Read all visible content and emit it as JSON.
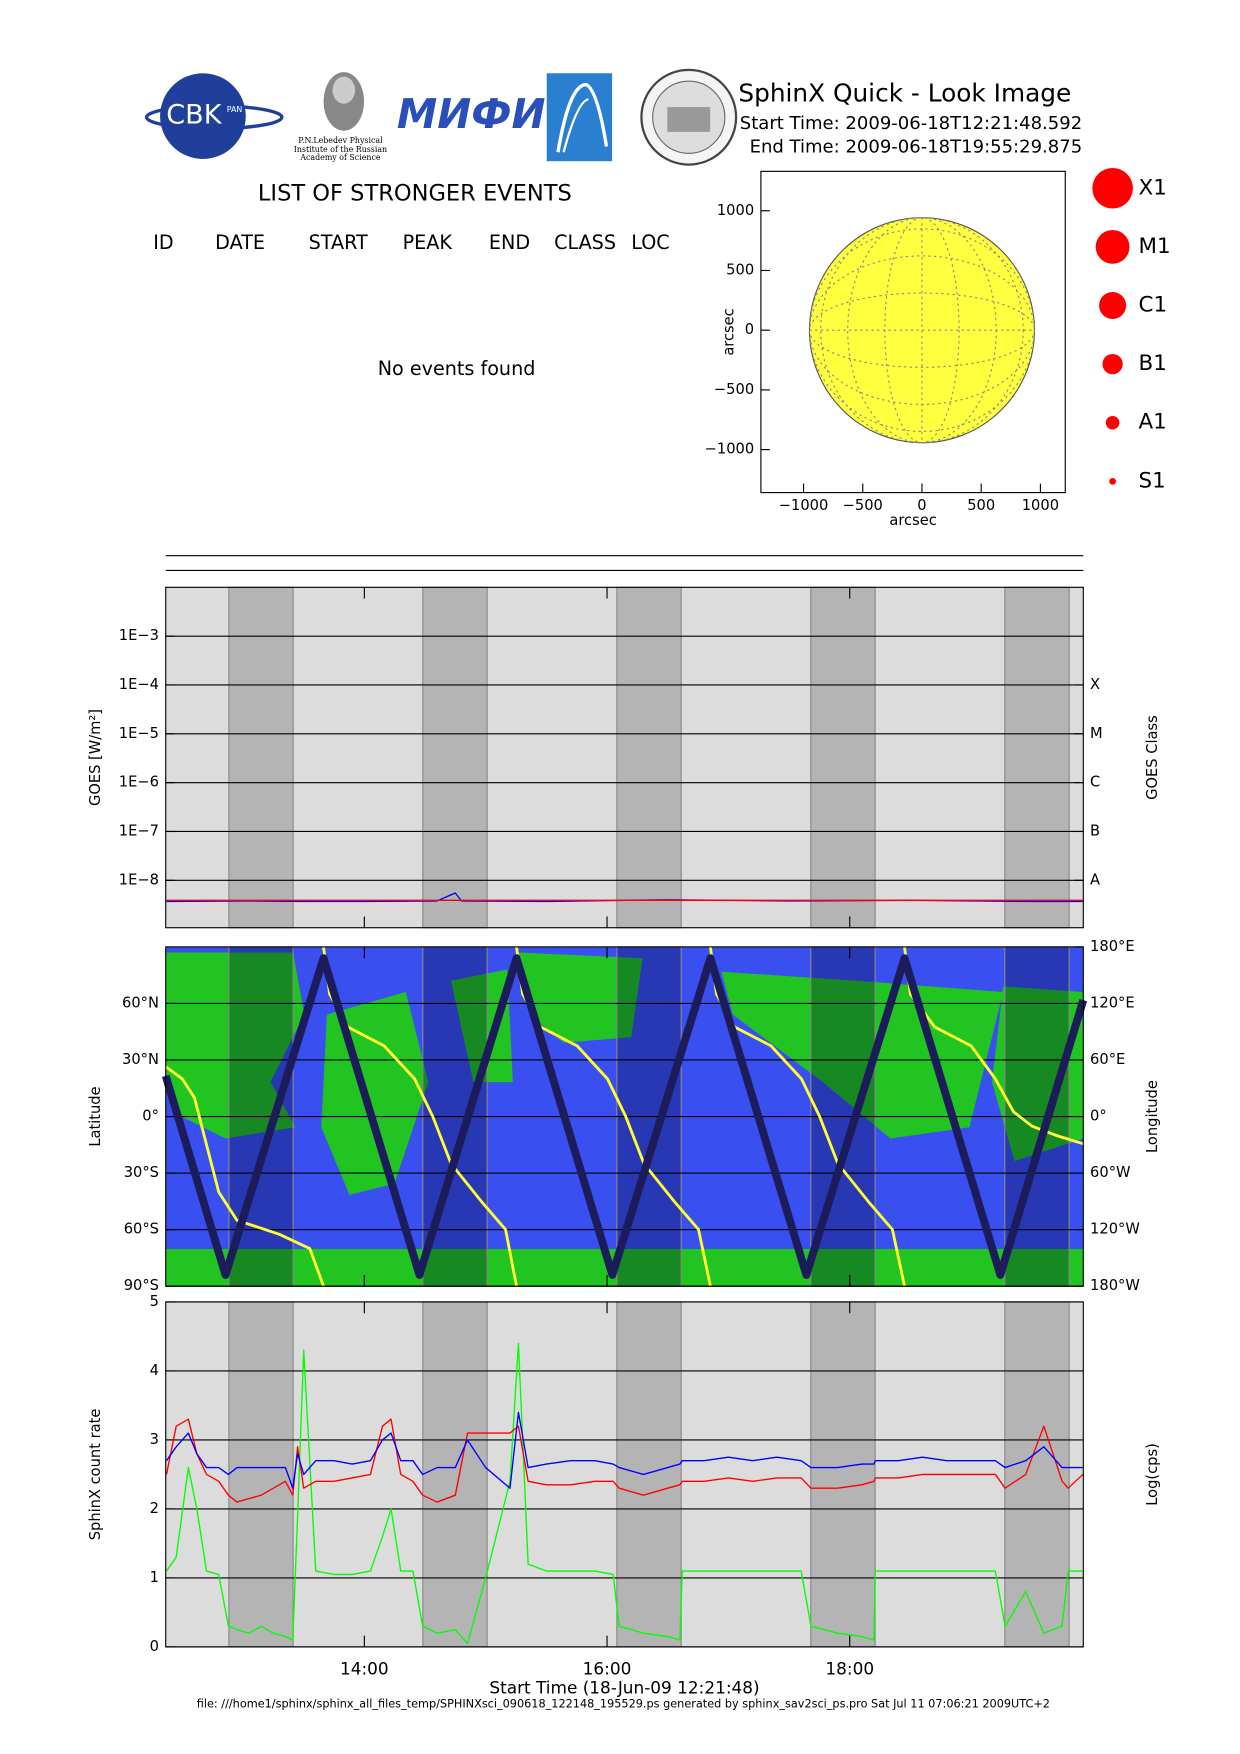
{
  "header": {
    "title": "SphinX Quick - Look Image",
    "start_time": "Start Time: 2009-06-18T12:21:48.592",
    "end_time": "End Time: 2009-06-18T19:55:29.875",
    "logos": [
      "CBK",
      "PAN",
      "P.N.Lebedev Physical",
      "Institute of the Russian",
      "Academy of Science",
      "МИФИ"
    ]
  },
  "events": {
    "title": "LIST OF STRONGER EVENTS",
    "columns": [
      "ID",
      "DATE",
      "START",
      "PEAK",
      "END",
      "CLASS",
      "LOC"
    ],
    "message": "No events found"
  },
  "flare_classes": {
    "labels": [
      "X1",
      "M1",
      "C1",
      "B1",
      "A1",
      "S1"
    ],
    "color": "#ff0000"
  },
  "time_axis": {
    "x_label": "Start Time (18-Jun-09 12:21:48)",
    "xlim": [
      12.3633,
      19.9247
    ],
    "xticks": [
      {
        "value": 14,
        "label": "14:00"
      },
      {
        "value": 16,
        "label": "16:00"
      },
      {
        "value": 18,
        "label": "18:00"
      }
    ],
    "eclipses": [
      [
        12.884,
        13.413
      ],
      [
        14.482,
        15.012
      ],
      [
        16.081,
        16.611
      ],
      [
        17.679,
        18.209
      ],
      [
        19.278,
        19.808
      ]
    ]
  },
  "chart_data": [
    {
      "type": "disk",
      "x_label": "arcsec",
      "y_label": "arcsec",
      "radius": 950,
      "color": "#ffff40",
      "xlim": [
        -1360,
        1210
      ],
      "ylim": [
        -1360,
        1330
      ],
      "xticks": [
        {
          "value": -1000,
          "label": "−1000"
        },
        {
          "value": -500,
          "label": "−500"
        },
        0,
        500,
        1000
      ],
      "yticks": [
        {
          "value": -1000,
          "label": "−1000"
        },
        {
          "value": -500,
          "label": "−500"
        },
        0,
        500,
        1000
      ]
    },
    {
      "type": "line",
      "y_label": "GOES [W/m²]",
      "y2_label": "GOES Class",
      "yscale": "log",
      "grid": true,
      "ylim": [
        1.07e-09,
        0.01
      ],
      "yticks": [
        {
          "value": 0.001,
          "label": "1E−3"
        },
        {
          "value": 0.0001,
          "label": "1E−4"
        },
        {
          "value": 1e-05,
          "label": "1E−5"
        },
        {
          "value": 1e-06,
          "label": "1E−6"
        },
        {
          "value": 1e-07,
          "label": "1E−7"
        },
        {
          "value": 1e-08,
          "label": "1E−8"
        }
      ],
      "y2lim": [
        1.07e-09,
        0.01
      ],
      "y2ticks": [
        {
          "value": 0.0001,
          "label": "X"
        },
        {
          "value": 1e-05,
          "label": "M"
        },
        {
          "value": 1e-06,
          "label": "C"
        },
        {
          "value": 1e-07,
          "label": "B"
        },
        {
          "value": 1e-08,
          "label": "A"
        }
      ],
      "x": [
        12.37,
        13.0,
        13.5,
        14.0,
        14.6,
        14.75,
        14.8,
        15.5,
        16.5,
        17.5,
        18.5,
        19.5,
        19.92
      ],
      "series": [
        {
          "color": "#0000ff",
          "values": [
            3.7e-09,
            3.8e-09,
            3.7e-09,
            3.7e-09,
            3.8e-09,
            5.5e-09,
            3.8e-09,
            3.7e-09,
            4e-09,
            3.8e-09,
            3.9e-09,
            3.7e-09,
            3.7e-09
          ]
        },
        {
          "color": "#ff0000",
          "values": [
            3.9e-09,
            3.9e-09,
            3.9e-09,
            3.9e-09,
            3.9e-09,
            3.9e-09,
            3.9e-09,
            3.9e-09,
            3.9e-09,
            3.9e-09,
            3.9e-09,
            3.9e-09,
            3.9e-09
          ]
        }
      ]
    },
    {
      "type": "ground-track",
      "y_label": "Latitude",
      "y2_label": "Longitude",
      "grid": true,
      "ylim": [
        -90,
        90
      ],
      "yticks": [
        {
          "value": -90,
          "label": "90°S"
        },
        {
          "value": -60,
          "label": "60°S"
        },
        {
          "value": -30,
          "label": "30°S"
        },
        {
          "value": 0,
          "label": "0°"
        },
        {
          "value": 30,
          "label": "30°N"
        },
        {
          "value": 60,
          "label": "60°N"
        }
      ],
      "y2lim": [
        -180,
        180
      ],
      "y2ticks": [
        {
          "value": -180,
          "label": "180°W"
        },
        {
          "value": -120,
          "label": "120°W"
        },
        {
          "value": -60,
          "label": "60°W"
        },
        {
          "value": 0,
          "label": "0°"
        },
        {
          "value": 60,
          "label": "60°E"
        },
        {
          "value": 120,
          "label": "120°E"
        },
        {
          "value": 180,
          "label": "180°E"
        }
      ],
      "series": [
        {
          "color": "#ffff33",
          "axis": "y2",
          "x": [
            12.363,
            12.5,
            12.6,
            12.7,
            12.8,
            12.95,
            13.3,
            13.55,
            13.664,
            13.664,
            13.664,
            13.714,
            13.864,
            14.164,
            14.414,
            14.564,
            14.714,
            14.964,
            15.164,
            15.254,
            15.254,
            15.254,
            15.304,
            15.454,
            15.754,
            16.004,
            16.154,
            16.304,
            16.554,
            16.754,
            16.852,
            16.852,
            16.852,
            16.902,
            17.052,
            17.352,
            17.602,
            17.752,
            17.902,
            18.152,
            18.352,
            18.451,
            18.451,
            18.451,
            18.5,
            18.7,
            19.0,
            19.2,
            19.35,
            19.5,
            19.7,
            19.925
          ],
          "values": [
            53,
            40,
            20,
            -30,
            -80,
            -110,
            -125,
            -140,
            -180,
            null,
            180,
            130,
            95,
            75,
            40,
            0,
            -50,
            -90,
            -120,
            -180,
            null,
            180,
            130,
            95,
            75,
            40,
            0,
            -50,
            -90,
            -120,
            -180,
            null,
            180,
            130,
            95,
            75,
            40,
            0,
            -50,
            -90,
            -120,
            -180,
            null,
            180,
            130,
            95,
            75,
            40,
            5,
            -10,
            -20,
            -29
          ]
        },
        {
          "color": "#1c1c5a",
          "x": [
            12.363,
            12.856,
            13.664,
            14.454,
            15.254,
            16.044,
            16.852,
            17.642,
            18.451,
            19.241,
            19.925
          ],
          "values": [
            21.6,
            -84,
            84,
            -84,
            84,
            -84,
            84,
            -84,
            84,
            -84,
            61.8
          ]
        }
      ]
    },
    {
      "type": "line",
      "y_label": "SphinX count rate",
      "y2_label": "Log(cps)",
      "grid": true,
      "time_labels": true,
      "ylim": [
        0,
        5
      ],
      "yticks": [
        0,
        1,
        2,
        3,
        4,
        5
      ],
      "x": [
        12.37,
        12.45,
        12.55,
        12.62,
        12.7,
        12.8,
        12.88,
        12.95,
        13.05,
        13.15,
        13.25,
        13.35,
        13.41,
        13.45,
        13.5,
        13.6,
        13.75,
        13.9,
        14.05,
        14.15,
        14.22,
        14.3,
        14.4,
        14.48,
        14.6,
        14.75,
        14.85,
        15.0,
        15.2,
        15.27,
        15.35,
        15.5,
        15.7,
        15.9,
        16.05,
        16.1,
        16.3,
        16.5,
        16.6,
        16.62,
        16.8,
        17.0,
        17.2,
        17.4,
        17.6,
        17.68,
        17.9,
        18.1,
        18.2,
        18.21,
        18.4,
        18.6,
        18.8,
        19.0,
        19.2,
        19.28,
        19.45,
        19.6,
        19.75,
        19.8,
        19.92
      ],
      "series": [
        {
          "color": "#00ff00",
          "values": [
            1.1,
            1.3,
            2.6,
            2.0,
            1.1,
            1.05,
            0.3,
            0.25,
            0.2,
            0.3,
            0.2,
            0.15,
            0.1,
            1.9,
            4.3,
            1.1,
            1.05,
            1.05,
            1.1,
            1.6,
            2.0,
            1.1,
            1.1,
            0.3,
            0.2,
            0.25,
            0.05,
            1.0,
            2.4,
            4.4,
            1.2,
            1.1,
            1.1,
            1.1,
            1.05,
            0.3,
            0.2,
            0.15,
            0.1,
            1.1,
            1.1,
            1.1,
            1.1,
            1.1,
            1.1,
            0.3,
            0.2,
            0.15,
            0.1,
            1.1,
            1.1,
            1.1,
            1.1,
            1.1,
            1.1,
            0.3,
            0.8,
            0.2,
            0.3,
            1.1,
            1.1
          ]
        },
        {
          "color": "#ff0000",
          "values": [
            2.5,
            3.2,
            3.3,
            2.8,
            2.5,
            2.4,
            2.2,
            2.1,
            2.15,
            2.2,
            2.3,
            2.4,
            2.2,
            2.9,
            2.3,
            2.4,
            2.4,
            2.45,
            2.5,
            3.2,
            3.3,
            2.5,
            2.4,
            2.2,
            2.1,
            2.2,
            3.1,
            3.1,
            3.1,
            3.2,
            2.4,
            2.35,
            2.35,
            2.4,
            2.4,
            2.3,
            2.2,
            2.3,
            2.35,
            2.4,
            2.4,
            2.45,
            2.4,
            2.45,
            2.45,
            2.3,
            2.3,
            2.35,
            2.4,
            2.45,
            2.45,
            2.5,
            2.5,
            2.5,
            2.5,
            2.3,
            2.5,
            3.2,
            2.4,
            2.3,
            2.5
          ]
        },
        {
          "color": "#0000ff",
          "values": [
            2.7,
            2.9,
            3.1,
            2.8,
            2.6,
            2.6,
            2.5,
            2.6,
            2.6,
            2.6,
            2.6,
            2.6,
            2.3,
            2.8,
            2.5,
            2.7,
            2.7,
            2.65,
            2.7,
            3.0,
            3.1,
            2.7,
            2.7,
            2.5,
            2.6,
            2.6,
            3.0,
            2.6,
            2.3,
            3.4,
            2.6,
            2.65,
            2.7,
            2.7,
            2.65,
            2.6,
            2.5,
            2.6,
            2.65,
            2.7,
            2.7,
            2.75,
            2.7,
            2.75,
            2.7,
            2.6,
            2.6,
            2.65,
            2.65,
            2.7,
            2.7,
            2.75,
            2.7,
            2.7,
            2.7,
            2.6,
            2.7,
            2.9,
            2.6,
            2.6,
            2.6
          ]
        }
      ]
    }
  ],
  "footer": "file: ///home1/sphinx/sphinx_all_files_temp/SPHINXsci_090618_122148_195529.ps generated by sphinx_sav2sci_ps.pro Sat Jul 11 07:06:21 2009UTC+2"
}
